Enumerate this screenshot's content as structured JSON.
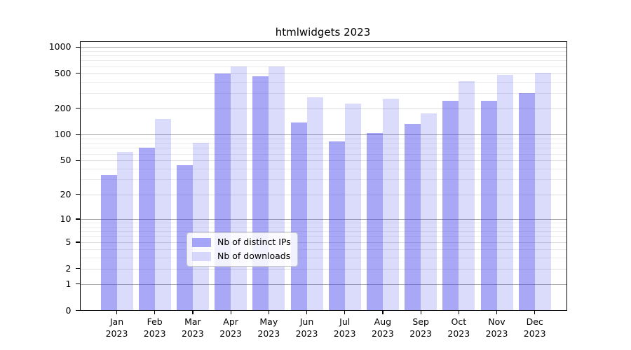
{
  "chart_data": {
    "type": "bar",
    "title": "htmlwidgets 2023",
    "categories": [
      "Jan",
      "Feb",
      "Mar",
      "Apr",
      "May",
      "Jun",
      "Jul",
      "Aug",
      "Sep",
      "Oct",
      "Nov",
      "Dec"
    ],
    "x_tick_second_line": "2023",
    "series": [
      {
        "name": "Nb of distinct IPs",
        "color": "rgba(62,62,238,0.45)",
        "values": [
          34,
          70,
          44,
          500,
          460,
          136,
          83,
          103,
          132,
          243,
          245,
          300
        ]
      },
      {
        "name": "Nb of downloads",
        "color": "rgba(62,62,238,0.19)",
        "values": [
          63,
          150,
          80,
          600,
          600,
          268,
          227,
          257,
          175,
          405,
          480,
          503
        ]
      }
    ],
    "y_scale": "log1p",
    "y_axis": {
      "tick_values": [
        0,
        1,
        2,
        5,
        10,
        20,
        50,
        100,
        200,
        500,
        1000
      ],
      "tick_labels": [
        "0",
        "1",
        "2",
        "5",
        "10",
        "20",
        "50",
        "100",
        "200",
        "500",
        "1000"
      ],
      "max_value": 1170
    },
    "grid": {
      "decade_values": [
        1,
        10,
        100,
        1000
      ],
      "decade_color": "#a9a9a9",
      "labeled_minor_values": [
        2,
        5,
        20,
        50,
        200,
        500
      ],
      "labeled_minor_color": "#dcdcdc",
      "minor_values": [
        3,
        4,
        6,
        7,
        8,
        9,
        30,
        40,
        60,
        70,
        80,
        90,
        300,
        400,
        600,
        700,
        800,
        900
      ],
      "minor_color": "#ebebeb"
    },
    "legend_position": "lower-center",
    "frame_color": "#000000",
    "background_color": "#ffffff"
  }
}
